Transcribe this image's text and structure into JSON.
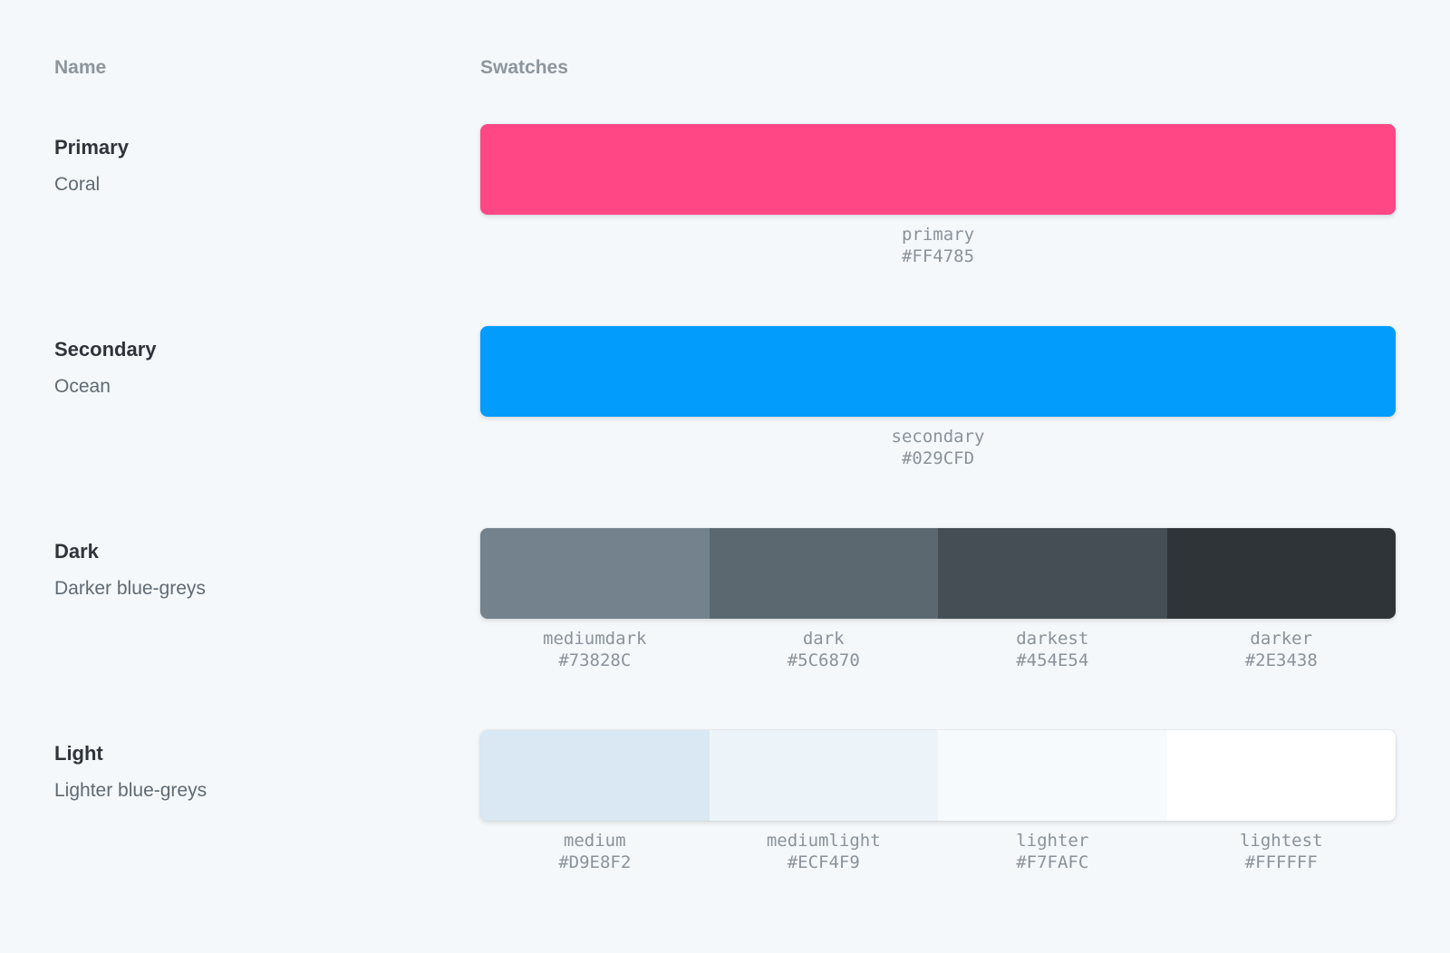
{
  "columns": {
    "name": "Name",
    "swatches": "Swatches"
  },
  "palettes": [
    {
      "title": "Primary",
      "subtitle": "Coral",
      "colors": [
        {
          "name": "primary",
          "hex": "#FF4785"
        }
      ]
    },
    {
      "title": "Secondary",
      "subtitle": "Ocean",
      "colors": [
        {
          "name": "secondary",
          "hex": "#029CFD"
        }
      ]
    },
    {
      "title": "Dark",
      "subtitle": "Darker blue-greys",
      "colors": [
        {
          "name": "mediumdark",
          "hex": "#73828C"
        },
        {
          "name": "dark",
          "hex": "#5C6870"
        },
        {
          "name": "darkest",
          "hex": "#454E54"
        },
        {
          "name": "darker",
          "hex": "#2E3438"
        }
      ]
    },
    {
      "title": "Light",
      "subtitle": "Lighter blue-greys",
      "colors": [
        {
          "name": "medium",
          "hex": "#D9E8F2"
        },
        {
          "name": "mediumlight",
          "hex": "#ECF4F9"
        },
        {
          "name": "lighter",
          "hex": "#F7FAFC"
        },
        {
          "name": "lightest",
          "hex": "#FFFFFF"
        }
      ]
    }
  ],
  "theme": {
    "page_background": "#F4F8FB",
    "heading_color": "#8D969D",
    "title_color": "#2F343B",
    "subtitle_color": "#5F6A73",
    "label_color": "#8A929B"
  }
}
